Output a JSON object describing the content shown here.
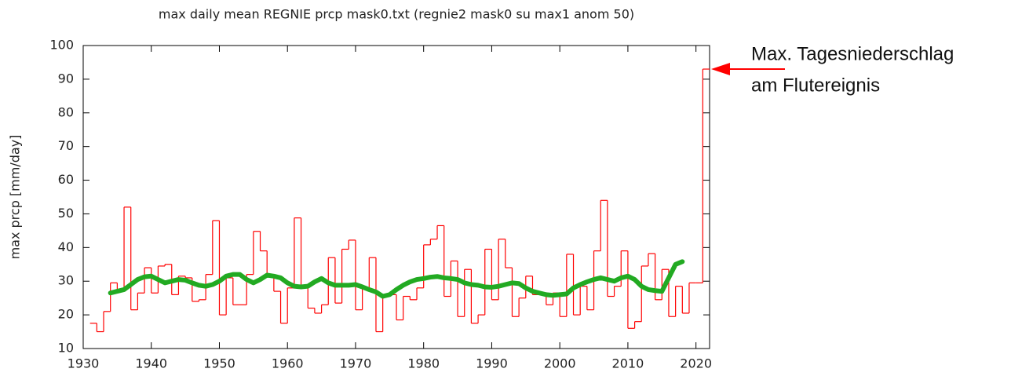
{
  "chart_data": {
    "type": "line",
    "title": "max daily mean REGNIE prcp mask0.txt (regnie2 mask0 su max1 anom 50)",
    "y_label": "max prcp [mm/day]",
    "annotation": [
      "Max. Tagesniederschlag",
      "am Flutereignis"
    ],
    "xlim": [
      1930,
      2022
    ],
    "ylim": [
      10,
      100
    ],
    "xticks": [
      1930,
      1940,
      1950,
      1960,
      1970,
      1980,
      1990,
      2000,
      2010,
      2020
    ],
    "yticks": [
      10,
      20,
      30,
      40,
      50,
      60,
      70,
      80,
      90,
      100
    ],
    "series": [
      {
        "color": "#ff0000",
        "style": "step",
        "x": [
          1931,
          1932,
          1933,
          1934,
          1935,
          1936,
          1937,
          1938,
          1939,
          1940,
          1941,
          1942,
          1943,
          1944,
          1945,
          1946,
          1947,
          1948,
          1949,
          1950,
          1951,
          1952,
          1953,
          1954,
          1955,
          1956,
          1957,
          1958,
          1959,
          1960,
          1961,
          1962,
          1963,
          1964,
          1965,
          1966,
          1967,
          1968,
          1969,
          1970,
          1971,
          1972,
          1973,
          1974,
          1975,
          1976,
          1977,
          1978,
          1979,
          1980,
          1981,
          1982,
          1983,
          1984,
          1985,
          1986,
          1987,
          1988,
          1989,
          1990,
          1991,
          1992,
          1993,
          1994,
          1995,
          1996,
          1997,
          1998,
          1999,
          2000,
          2001,
          2002,
          2003,
          2004,
          2005,
          2006,
          2007,
          2008,
          2009,
          2010,
          2011,
          2012,
          2013,
          2014,
          2015,
          2016,
          2017,
          2018,
          2019,
          2020,
          2021
        ],
        "values": [
          17.5,
          15,
          21,
          29.5,
          27,
          52,
          21.5,
          26.5,
          34,
          26.5,
          34.5,
          35,
          26,
          31.5,
          31,
          24,
          24.5,
          32,
          48,
          20,
          31,
          23,
          23,
          32,
          44.8,
          39,
          32,
          27,
          17.5,
          28,
          48.8,
          28,
          22,
          20.5,
          23,
          37,
          23.5,
          39.5,
          42.2,
          21.5,
          28,
          37,
          15,
          25.5,
          26,
          18.5,
          25.5,
          24.5,
          28,
          40.8,
          42.5,
          46.5,
          25.5,
          36,
          19.5,
          33.5,
          17.5,
          20,
          39.5,
          24.5,
          42.5,
          34,
          19.5,
          25,
          31.5,
          26,
          26,
          23,
          26.5,
          19.5,
          38,
          20,
          28.5,
          21.5,
          39,
          54,
          25.5,
          28.5,
          39,
          16,
          18,
          34.5,
          38.2,
          24.5,
          33.5,
          19.5,
          28.5,
          20.5,
          29.5,
          29.5,
          93
        ]
      },
      {
        "color": "#22aa22",
        "style": "line",
        "x": [
          1934,
          1935,
          1936,
          1937,
          1938,
          1939,
          1940,
          1941,
          1942,
          1943,
          1944,
          1945,
          1946,
          1947,
          1948,
          1949,
          1950,
          1951,
          1952,
          1953,
          1954,
          1955,
          1956,
          1957,
          1958,
          1959,
          1960,
          1961,
          1962,
          1963,
          1964,
          1965,
          1966,
          1967,
          1968,
          1969,
          1970,
          1971,
          1972,
          1973,
          1974,
          1975,
          1976,
          1977,
          1978,
          1979,
          1980,
          1981,
          1982,
          1983,
          1984,
          1985,
          1986,
          1987,
          1988,
          1989,
          1990,
          1991,
          1992,
          1993,
          1994,
          1995,
          1996,
          1997,
          1998,
          1999,
          2000,
          2001,
          2002,
          2003,
          2004,
          2005,
          2006,
          2007,
          2008,
          2009,
          2010,
          2011,
          2012,
          2013,
          2014,
          2015,
          2016,
          2017,
          2018
        ],
        "values": [
          26.5,
          27,
          27.5,
          29,
          30.5,
          31.3,
          31.5,
          30.5,
          29.5,
          30,
          30.5,
          30.3,
          29.5,
          28.8,
          28.5,
          29,
          30,
          31.5,
          32,
          32,
          30.5,
          29.5,
          30.5,
          31.8,
          31.5,
          31,
          29.5,
          28.5,
          28.3,
          28.5,
          29.8,
          30.8,
          29.5,
          28.8,
          28.8,
          28.8,
          29,
          28.3,
          27.5,
          26.8,
          25.5,
          26,
          27.5,
          28.8,
          29.8,
          30.5,
          30.8,
          31.2,
          31.4,
          31,
          30.8,
          30.5,
          29.5,
          29,
          28.8,
          28.3,
          28.2,
          28.5,
          29,
          29.5,
          29.3,
          28,
          27,
          26.5,
          26,
          25.8,
          26,
          26.2,
          28,
          29,
          29.8,
          30.5,
          31,
          30.5,
          30,
          31,
          31.5,
          30.5,
          28.5,
          27.5,
          27.2,
          27,
          31,
          35,
          35.8
        ]
      }
    ]
  }
}
